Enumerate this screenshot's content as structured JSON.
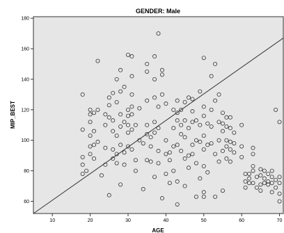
{
  "panel": {
    "title": "GENDER: Male"
  },
  "chart_data": {
    "type": "scatter",
    "title": "GENDER: Male",
    "xlabel": "AGE",
    "ylabel": "MIP_BEST",
    "xlim": [
      5,
      71
    ],
    "ylim": [
      52,
      181
    ],
    "x_ticks": [
      10,
      20,
      30,
      40,
      50,
      60,
      70
    ],
    "y_ticks": [
      60,
      80,
      100,
      120,
      140,
      160,
      180
    ],
    "grid": false,
    "marker": "open-circle",
    "reference_line": {
      "kind": "fitted-line",
      "from": [
        5,
        52
      ],
      "to": [
        71,
        167
      ]
    },
    "colors": {
      "plot_background": "#e6e6e6",
      "marker_stroke": "#333333",
      "line": "#333333"
    },
    "points": [
      {
        "x": 18,
        "y": 130
      },
      {
        "x": 18,
        "y": 107
      },
      {
        "x": 18,
        "y": 89
      },
      {
        "x": 18,
        "y": 84
      },
      {
        "x": 18,
        "y": 78
      },
      {
        "x": 19,
        "y": 80
      },
      {
        "x": 20,
        "y": 120
      },
      {
        "x": 20,
        "y": 117
      },
      {
        "x": 20,
        "y": 112
      },
      {
        "x": 20,
        "y": 103
      },
      {
        "x": 20,
        "y": 96
      },
      {
        "x": 20,
        "y": 91
      },
      {
        "x": 21,
        "y": 118
      },
      {
        "x": 21,
        "y": 106
      },
      {
        "x": 21,
        "y": 97
      },
      {
        "x": 21,
        "y": 88
      },
      {
        "x": 22,
        "y": 120
      },
      {
        "x": 22,
        "y": 99
      },
      {
        "x": 22,
        "y": 152
      },
      {
        "x": 23,
        "y": 77
      },
      {
        "x": 24,
        "y": 117
      },
      {
        "x": 24,
        "y": 110
      },
      {
        "x": 24,
        "y": 95
      },
      {
        "x": 24,
        "y": 84
      },
      {
        "x": 25,
        "y": 128
      },
      {
        "x": 25,
        "y": 123
      },
      {
        "x": 25,
        "y": 115
      },
      {
        "x": 25,
        "y": 64
      },
      {
        "x": 26,
        "y": 131
      },
      {
        "x": 26,
        "y": 113
      },
      {
        "x": 26,
        "y": 106
      },
      {
        "x": 26,
        "y": 94
      },
      {
        "x": 26,
        "y": 88
      },
      {
        "x": 27,
        "y": 140
      },
      {
        "x": 27,
        "y": 125
      },
      {
        "x": 27,
        "y": 103
      },
      {
        "x": 27,
        "y": 91
      },
      {
        "x": 27,
        "y": 85
      },
      {
        "x": 28,
        "y": 146
      },
      {
        "x": 28,
        "y": 132
      },
      {
        "x": 28,
        "y": 117
      },
      {
        "x": 28,
        "y": 109
      },
      {
        "x": 28,
        "y": 97
      },
      {
        "x": 28,
        "y": 71
      },
      {
        "x": 29,
        "y": 135
      },
      {
        "x": 29,
        "y": 112
      },
      {
        "x": 29,
        "y": 92
      },
      {
        "x": 29,
        "y": 84
      },
      {
        "x": 30,
        "y": 156
      },
      {
        "x": 30,
        "y": 120
      },
      {
        "x": 30,
        "y": 116
      },
      {
        "x": 30,
        "y": 110
      },
      {
        "x": 30,
        "y": 105
      },
      {
        "x": 30,
        "y": 96
      },
      {
        "x": 31,
        "y": 155
      },
      {
        "x": 31,
        "y": 142
      },
      {
        "x": 31,
        "y": 130
      },
      {
        "x": 31,
        "y": 122
      },
      {
        "x": 31,
        "y": 117
      },
      {
        "x": 31,
        "y": 107
      },
      {
        "x": 31,
        "y": 94
      },
      {
        "x": 32,
        "y": 110
      },
      {
        "x": 32,
        "y": 87
      },
      {
        "x": 32,
        "y": 80
      },
      {
        "x": 33,
        "y": 121
      },
      {
        "x": 33,
        "y": 100
      },
      {
        "x": 34,
        "y": 98
      },
      {
        "x": 34,
        "y": 68
      },
      {
        "x": 35,
        "y": 150
      },
      {
        "x": 35,
        "y": 145
      },
      {
        "x": 35,
        "y": 126
      },
      {
        "x": 35,
        "y": 110
      },
      {
        "x": 35,
        "y": 104
      },
      {
        "x": 35,
        "y": 87
      },
      {
        "x": 36,
        "y": 102
      },
      {
        "x": 36,
        "y": 96
      },
      {
        "x": 36,
        "y": 86
      },
      {
        "x": 37,
        "y": 155
      },
      {
        "x": 37,
        "y": 140
      },
      {
        "x": 37,
        "y": 128
      },
      {
        "x": 37,
        "y": 112
      },
      {
        "x": 37,
        "y": 105
      },
      {
        "x": 37,
        "y": 76
      },
      {
        "x": 38,
        "y": 170
      },
      {
        "x": 38,
        "y": 122
      },
      {
        "x": 38,
        "y": 108
      },
      {
        "x": 38,
        "y": 93
      },
      {
        "x": 38,
        "y": 85
      },
      {
        "x": 39,
        "y": 146
      },
      {
        "x": 39,
        "y": 143
      },
      {
        "x": 39,
        "y": 130
      },
      {
        "x": 39,
        "y": 62
      },
      {
        "x": 40,
        "y": 124
      },
      {
        "x": 40,
        "y": 100
      },
      {
        "x": 40,
        "y": 91
      },
      {
        "x": 40,
        "y": 78
      },
      {
        "x": 41,
        "y": 92
      },
      {
        "x": 41,
        "y": 87
      },
      {
        "x": 41,
        "y": 72
      },
      {
        "x": 42,
        "y": 120
      },
      {
        "x": 42,
        "y": 108
      },
      {
        "x": 42,
        "y": 96
      },
      {
        "x": 42,
        "y": 80
      },
      {
        "x": 43,
        "y": 126
      },
      {
        "x": 43,
        "y": 118
      },
      {
        "x": 43,
        "y": 113
      },
      {
        "x": 43,
        "y": 97
      },
      {
        "x": 43,
        "y": 73
      },
      {
        "x": 43,
        "y": 58
      },
      {
        "x": 44,
        "y": 120
      },
      {
        "x": 44,
        "y": 110
      },
      {
        "x": 44,
        "y": 104
      },
      {
        "x": 44,
        "y": 93
      },
      {
        "x": 45,
        "y": 125
      },
      {
        "x": 45,
        "y": 113
      },
      {
        "x": 45,
        "y": 102
      },
      {
        "x": 45,
        "y": 88
      },
      {
        "x": 45,
        "y": 70
      },
      {
        "x": 46,
        "y": 128
      },
      {
        "x": 46,
        "y": 108
      },
      {
        "x": 46,
        "y": 90
      },
      {
        "x": 46,
        "y": 82
      },
      {
        "x": 47,
        "y": 127
      },
      {
        "x": 47,
        "y": 119
      },
      {
        "x": 47,
        "y": 112
      },
      {
        "x": 47,
        "y": 97
      },
      {
        "x": 47,
        "y": 91
      },
      {
        "x": 48,
        "y": 113
      },
      {
        "x": 48,
        "y": 100
      },
      {
        "x": 48,
        "y": 85
      },
      {
        "x": 48,
        "y": 63
      },
      {
        "x": 49,
        "y": 132
      },
      {
        "x": 49,
        "y": 110
      },
      {
        "x": 49,
        "y": 99
      },
      {
        "x": 49,
        "y": 75
      },
      {
        "x": 50,
        "y": 154
      },
      {
        "x": 50,
        "y": 122
      },
      {
        "x": 50,
        "y": 116
      },
      {
        "x": 50,
        "y": 103
      },
      {
        "x": 50,
        "y": 94
      },
      {
        "x": 50,
        "y": 83
      },
      {
        "x": 50,
        "y": 66
      },
      {
        "x": 50,
        "y": 63
      },
      {
        "x": 51,
        "y": 111
      },
      {
        "x": 51,
        "y": 97
      },
      {
        "x": 51,
        "y": 79
      },
      {
        "x": 52,
        "y": 142
      },
      {
        "x": 52,
        "y": 120
      },
      {
        "x": 52,
        "y": 109
      },
      {
        "x": 52,
        "y": 98
      },
      {
        "x": 53,
        "y": 150
      },
      {
        "x": 53,
        "y": 126
      },
      {
        "x": 53,
        "y": 91
      },
      {
        "x": 53,
        "y": 63
      },
      {
        "x": 54,
        "y": 130
      },
      {
        "x": 54,
        "y": 112
      },
      {
        "x": 54,
        "y": 100
      },
      {
        "x": 54,
        "y": 86
      },
      {
        "x": 55,
        "y": 118
      },
      {
        "x": 55,
        "y": 111
      },
      {
        "x": 55,
        "y": 106
      },
      {
        "x": 55,
        "y": 93
      },
      {
        "x": 55,
        "y": 67
      },
      {
        "x": 56,
        "y": 115
      },
      {
        "x": 56,
        "y": 109
      },
      {
        "x": 56,
        "y": 100
      },
      {
        "x": 56,
        "y": 96
      },
      {
        "x": 56,
        "y": 88
      },
      {
        "x": 57,
        "y": 115
      },
      {
        "x": 57,
        "y": 108
      },
      {
        "x": 57,
        "y": 99
      },
      {
        "x": 57,
        "y": 94
      },
      {
        "x": 57,
        "y": 86
      },
      {
        "x": 58,
        "y": 105
      },
      {
        "x": 58,
        "y": 98
      },
      {
        "x": 58,
        "y": 92
      },
      {
        "x": 60,
        "y": 110
      },
      {
        "x": 60,
        "y": 96
      },
      {
        "x": 60,
        "y": 89
      },
      {
        "x": 61,
        "y": 78
      },
      {
        "x": 61,
        "y": 73
      },
      {
        "x": 61,
        "y": 69
      },
      {
        "x": 62,
        "y": 78
      },
      {
        "x": 62,
        "y": 72
      },
      {
        "x": 62,
        "y": 75
      },
      {
        "x": 63,
        "y": 95
      },
      {
        "x": 63,
        "y": 91
      },
      {
        "x": 63,
        "y": 83
      },
      {
        "x": 63,
        "y": 80
      },
      {
        "x": 63,
        "y": 72
      },
      {
        "x": 64,
        "y": 76
      },
      {
        "x": 64,
        "y": 69
      },
      {
        "x": 65,
        "y": 81
      },
      {
        "x": 65,
        "y": 77
      },
      {
        "x": 65,
        "y": 71
      },
      {
        "x": 65,
        "y": 67
      },
      {
        "x": 66,
        "y": 80
      },
      {
        "x": 66,
        "y": 75
      },
      {
        "x": 66,
        "y": 72
      },
      {
        "x": 67,
        "y": 78
      },
      {
        "x": 67,
        "y": 73
      },
      {
        "x": 67,
        "y": 71
      },
      {
        "x": 68,
        "y": 80
      },
      {
        "x": 68,
        "y": 76
      },
      {
        "x": 68,
        "y": 72
      },
      {
        "x": 68,
        "y": 66
      },
      {
        "x": 69,
        "y": 120
      },
      {
        "x": 69,
        "y": 74
      },
      {
        "x": 69,
        "y": 69
      },
      {
        "x": 70,
        "y": 112
      },
      {
        "x": 70,
        "y": 76
      },
      {
        "x": 70,
        "y": 72
      },
      {
        "x": 70,
        "y": 65
      },
      {
        "x": 70,
        "y": 60
      }
    ]
  }
}
